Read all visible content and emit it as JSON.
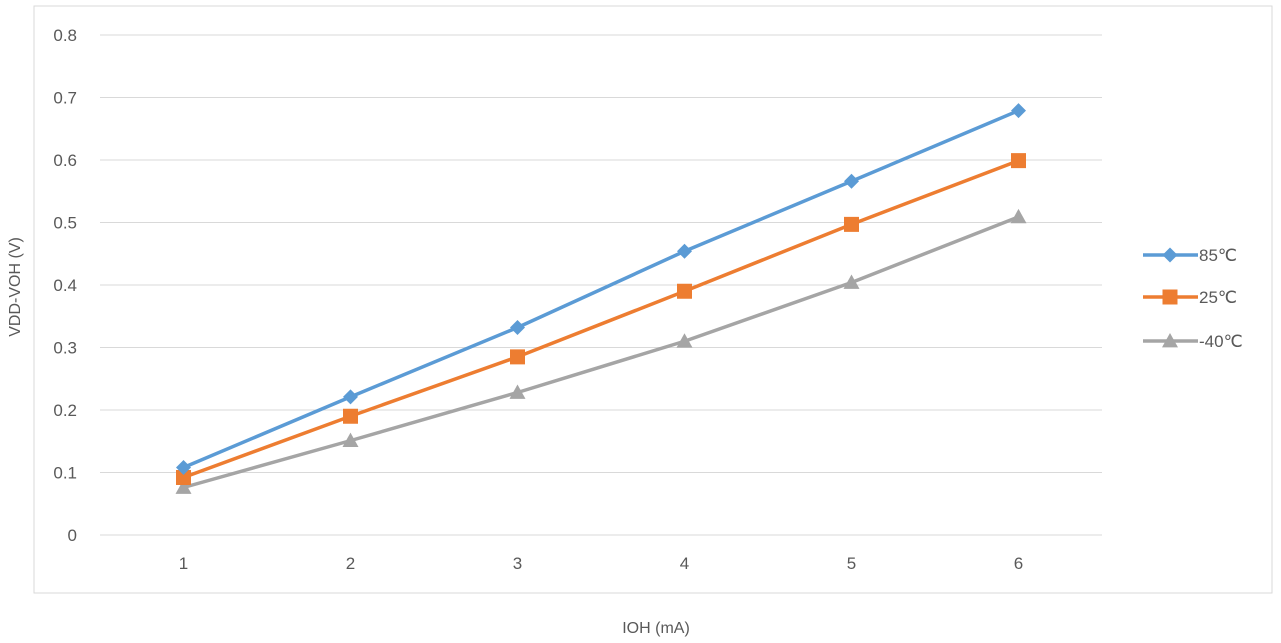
{
  "chart_data": {
    "type": "line",
    "title": "",
    "xlabel": "IOH (mA)",
    "ylabel": "VDD-VOH (V)",
    "categories": [
      "1",
      "2",
      "3",
      "4",
      "5",
      "6"
    ],
    "ylim": [
      0,
      0.8
    ],
    "yticks": [
      "0",
      "0.1",
      "0.2",
      "0.3",
      "0.4",
      "0.5",
      "0.6",
      "0.7",
      "0.8"
    ],
    "grid": true,
    "legend_position": "right",
    "series": [
      {
        "name": "85℃",
        "marker": "diamond",
        "color": "#5B9BD5",
        "values": [
          0.108,
          0.221,
          0.332,
          0.454,
          0.566,
          0.679
        ]
      },
      {
        "name": "25℃",
        "marker": "square",
        "color": "#ED7D31",
        "values": [
          0.092,
          0.19,
          0.285,
          0.39,
          0.497,
          0.599
        ]
      },
      {
        "name": "-40℃",
        "marker": "triangle",
        "color": "#A5A5A5",
        "values": [
          0.076,
          0.151,
          0.228,
          0.31,
          0.404,
          0.509
        ]
      }
    ]
  }
}
